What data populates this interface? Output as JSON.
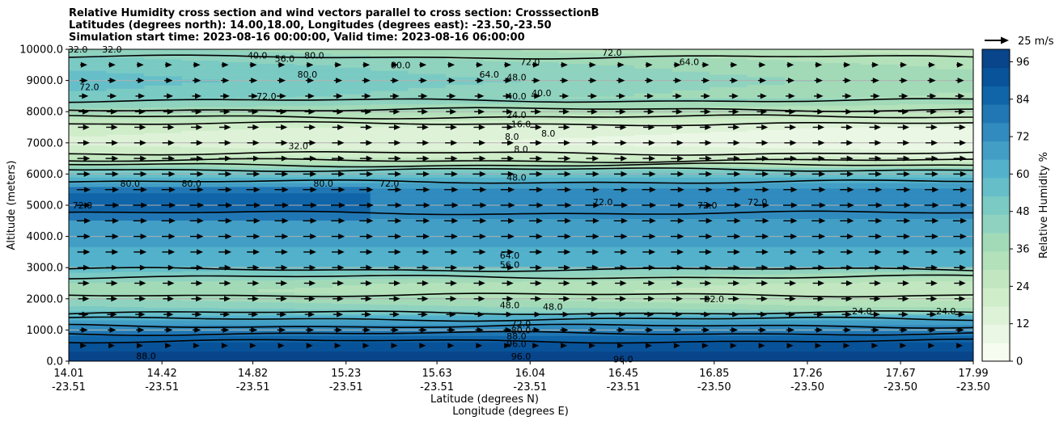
{
  "chart_data": {
    "type": "heatmap",
    "title_lines": [
      "Relative Humidity cross section and wind vectors parallel to cross section: CrosssectionB",
      "Latitudes (degrees north): 14.00,18.00, Longitudes (degrees east): -23.50,-23.50",
      "Simulation start time: 2023-08-16 00:00:00, Valid time: 2023-08-16 06:00:00"
    ],
    "xlabel": "Latitude (degrees N)",
    "xlabel2": "Longitude (degrees E)",
    "ylabel": "Altitude (meters)",
    "ylim": [
      0,
      10000
    ],
    "y_ticks": [
      "0.0",
      "1000.0",
      "2000.0",
      "3000.0",
      "4000.0",
      "5000.0",
      "6000.0",
      "7000.0",
      "8000.0",
      "9000.0",
      "10000.0"
    ],
    "x_ticks": [
      {
        "lat": "14.01",
        "lon": "-23.51"
      },
      {
        "lat": "14.42",
        "lon": "-23.51"
      },
      {
        "lat": "14.82",
        "lon": "-23.51"
      },
      {
        "lat": "15.23",
        "lon": "-23.51"
      },
      {
        "lat": "15.63",
        "lon": "-23.51"
      },
      {
        "lat": "16.04",
        "lon": "-23.51"
      },
      {
        "lat": "16.45",
        "lon": "-23.51"
      },
      {
        "lat": "16.85",
        "lon": "-23.50"
      },
      {
        "lat": "17.26",
        "lon": "-23.50"
      },
      {
        "lat": "17.67",
        "lon": "-23.50"
      },
      {
        "lat": "17.99",
        "lon": "-23.50"
      }
    ],
    "grid": "horizontal",
    "colorbar": {
      "label": "Relative Humidity %",
      "range": [
        0,
        100
      ],
      "ticks": [
        "0",
        "12",
        "24",
        "36",
        "48",
        "60",
        "72",
        "84",
        "96"
      ],
      "colors": [
        "#f7fcf0",
        "#eaf7e4",
        "#def2d8",
        "#d0edca",
        "#c2e7c0",
        "#b3e1ba",
        "#a2dab8",
        "#8fd2bf",
        "#7bcac4",
        "#66bfc8",
        "#53b1cb",
        "#429ec5",
        "#318bbe",
        "#2177b4",
        "#1065a8",
        "#085399",
        "#08458a"
      ]
    },
    "wind_key": "25 m/s",
    "humidity_profile": [
      {
        "alt": 0,
        "rh": 95
      },
      {
        "alt": 250,
        "rh": 95
      },
      {
        "alt": 500,
        "rh": 92
      },
      {
        "alt": 750,
        "rh": 85
      },
      {
        "alt": 1000,
        "rh": 76
      },
      {
        "alt": 1250,
        "rh": 68
      },
      {
        "alt": 1500,
        "rh": 58
      },
      {
        "alt": 1750,
        "rh": 48
      },
      {
        "alt": 2000,
        "rh": 42
      },
      {
        "alt": 2250,
        "rh": 38
      },
      {
        "alt": 2500,
        "rh": 40
      },
      {
        "alt": 2750,
        "rh": 50
      },
      {
        "alt": 3000,
        "rh": 58
      },
      {
        "alt": 3250,
        "rh": 62
      },
      {
        "alt": 3500,
        "rh": 64
      },
      {
        "alt": 4000,
        "rh": 66
      },
      {
        "alt": 4500,
        "rh": 70
      },
      {
        "alt": 5000,
        "rh": 74
      },
      {
        "alt": 5500,
        "rh": 72
      },
      {
        "alt": 6000,
        "rh": 56
      },
      {
        "alt": 6250,
        "rh": 42
      },
      {
        "alt": 6500,
        "rh": 28
      },
      {
        "alt": 7000,
        "rh": 16
      },
      {
        "alt": 7500,
        "rh": 20
      },
      {
        "alt": 8000,
        "rh": 38
      },
      {
        "alt": 8500,
        "rh": 52
      },
      {
        "alt": 9000,
        "rh": 56
      },
      {
        "alt": 9500,
        "rh": 52
      },
      {
        "alt": 10000,
        "rh": 44
      }
    ],
    "contour_levels": [
      8,
      16,
      24,
      32,
      40,
      48,
      56,
      64,
      72,
      80,
      88,
      96
    ],
    "contour_labels": [
      {
        "text": "96.0",
        "lat": 16.0,
        "alt": 150
      },
      {
        "text": "96.0",
        "lat": 16.45,
        "alt": 60
      },
      {
        "text": "88.0",
        "lat": 14.35,
        "alt": 170
      },
      {
        "text": "96.0",
        "lat": 15.98,
        "alt": 560
      },
      {
        "text": "88.0",
        "lat": 15.98,
        "alt": 800
      },
      {
        "text": "80.0",
        "lat": 16.0,
        "alt": 1000
      },
      {
        "text": "72.0",
        "lat": 16.0,
        "alt": 1200
      },
      {
        "text": "48.0",
        "lat": 15.95,
        "alt": 1800
      },
      {
        "text": "48.0",
        "lat": 16.14,
        "alt": 1750
      },
      {
        "text": "32.0",
        "lat": 16.85,
        "alt": 2000
      },
      {
        "text": "24.0",
        "lat": 17.5,
        "alt": 1600
      },
      {
        "text": "24.0",
        "lat": 17.87,
        "alt": 1600
      },
      {
        "text": "56.0",
        "lat": 15.95,
        "alt": 3100
      },
      {
        "text": "64.0",
        "lat": 15.95,
        "alt": 3400
      },
      {
        "text": "72.0",
        "lat": 14.07,
        "alt": 5000
      },
      {
        "text": "72.0",
        "lat": 16.36,
        "alt": 5100
      },
      {
        "text": "72.0",
        "lat": 16.82,
        "alt": 5000
      },
      {
        "text": "72.0",
        "lat": 17.04,
        "alt": 5100
      },
      {
        "text": "72.0",
        "lat": 15.42,
        "alt": 5700
      },
      {
        "text": "80.0",
        "lat": 14.28,
        "alt": 5700
      },
      {
        "text": "80.0",
        "lat": 14.55,
        "alt": 5700
      },
      {
        "text": "80.0",
        "lat": 15.13,
        "alt": 5700
      },
      {
        "text": "48.0",
        "lat": 15.98,
        "alt": 5900
      },
      {
        "text": "32.0",
        "lat": 15.02,
        "alt": 6900
      },
      {
        "text": "8.0",
        "lat": 16.0,
        "alt": 6800
      },
      {
        "text": "8.0",
        "lat": 15.96,
        "alt": 7200
      },
      {
        "text": "8.0",
        "lat": 16.12,
        "alt": 7300
      },
      {
        "text": "16.0",
        "lat": 16.0,
        "alt": 7600
      },
      {
        "text": "24.0",
        "lat": 15.98,
        "alt": 7900
      },
      {
        "text": "40.0",
        "lat": 15.98,
        "alt": 8500
      },
      {
        "text": "40.0",
        "lat": 16.09,
        "alt": 8600
      },
      {
        "text": "48.0",
        "lat": 15.98,
        "alt": 9100
      },
      {
        "text": "64.0",
        "lat": 15.86,
        "alt": 9200
      },
      {
        "text": "72.0",
        "lat": 14.88,
        "alt": 8500
      },
      {
        "text": "80.0",
        "lat": 15.06,
        "alt": 9200
      },
      {
        "text": "80.0",
        "lat": 15.09,
        "alt": 9800
      },
      {
        "text": "80.0",
        "lat": 15.47,
        "alt": 9500
      },
      {
        "text": "56.0",
        "lat": 14.96,
        "alt": 9700
      },
      {
        "text": "40.0",
        "lat": 14.84,
        "alt": 9800
      },
      {
        "text": "72.0",
        "lat": 14.1,
        "alt": 8800
      },
      {
        "text": "32.0",
        "lat": 14.2,
        "alt": 10000
      },
      {
        "text": "32.0",
        "lat": 14.05,
        "alt": 10000
      },
      {
        "text": "72.0",
        "lat": 16.04,
        "alt": 9600
      },
      {
        "text": "64.0",
        "lat": 16.74,
        "alt": 9600
      },
      {
        "text": "72.0",
        "lat": 16.4,
        "alt": 9900
      }
    ],
    "wind_rows_alt": [
      500,
      1000,
      1500,
      2000,
      2500,
      3000,
      3500,
      4000,
      4500,
      5000,
      5500,
      6000,
      6500,
      7000,
      7500,
      8000,
      8500,
      9000,
      9500
    ],
    "wind_relative_length": [
      0.1,
      0.3,
      0.45,
      0.55,
      0.6,
      0.65,
      0.7,
      0.75,
      0.8,
      0.85,
      0.8,
      0.75,
      0.7,
      0.65,
      0.6,
      0.5,
      0.4,
      0.3,
      0.2
    ]
  }
}
